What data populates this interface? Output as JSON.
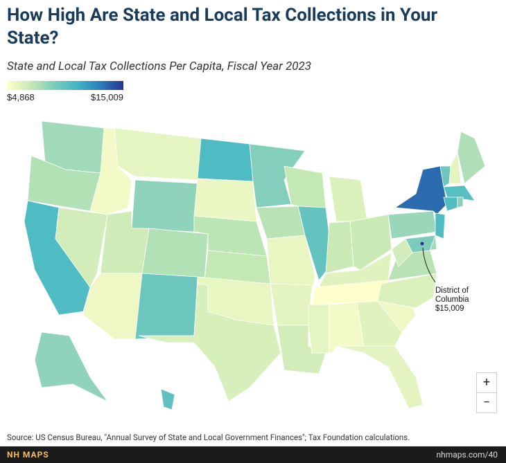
{
  "title": "How High Are State and Local Tax Collections in Your State?",
  "subtitle": "State and Local Tax Collections Per Capita, Fiscal Year 2023",
  "legend": {
    "ticks": [
      {
        "value": 4868,
        "label": "$4,868"
      },
      {
        "value": 15009,
        "label": "$15,009"
      }
    ]
  },
  "map": {
    "values": [
      8000,
      7500,
      10500,
      6500,
      5300,
      5800,
      8500,
      6600,
      5500,
      7500,
      9500,
      10500,
      5600,
      7200,
      7000,
      5700,
      6300,
      8800,
      7300,
      5700,
      5900,
      6500,
      7000,
      9800,
      6200,
      6800,
      6800,
      6000,
      4868,
      5800,
      5300,
      6000,
      5900,
      5500,
      6200,
      7300,
      6500,
      8200,
      13500,
      9500,
      5900,
      7600,
      10200,
      10500,
      8600,
      10500,
      8000,
      9000,
      8500,
      10000
    ]
  },
  "annotation": {
    "lines": [
      "District of",
      "Columbia"
    ],
    "value": 15009,
    "value_label": "$15,009"
  },
  "source": "Source: US Census Bureau, \"Annual Survey of State and Local Government Finances\"; Tax Foundation calculations.",
  "footer": {
    "brand": "NH MAPS",
    "url": "nhmaps.com/40"
  },
  "controls": {
    "zoom_in": "+",
    "zoom_out": "−"
  }
}
